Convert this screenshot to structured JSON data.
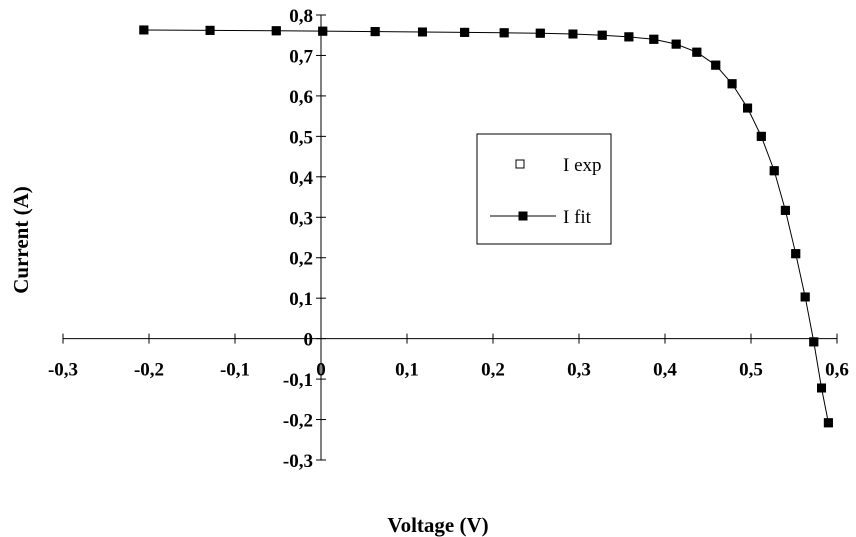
{
  "chart_data": {
    "type": "scatter",
    "xlabel": "Voltage (V)",
    "ylabel": "Current (A)",
    "xlim": [
      -0.3,
      0.6
    ],
    "ylim": [
      -0.3,
      0.8
    ],
    "x_ticks": [
      "-0,3",
      "-0,2",
      "-0,1",
      "0",
      "0,1",
      "0,2",
      "0,3",
      "0,4",
      "0,5",
      "0,6"
    ],
    "y_ticks": [
      "-0,3",
      "-0,2",
      "-0,1",
      "0",
      "0,1",
      "0,2",
      "0,3",
      "0,4",
      "0,5",
      "0,6",
      "0,7",
      "0,8"
    ],
    "grid": false,
    "legend_position": "center-right",
    "series": [
      {
        "name": "I exp",
        "marker": "open-square",
        "line": false,
        "color": "#000000",
        "x": [
          -0.206,
          -0.129,
          -0.052,
          0.002,
          0.063,
          0.118,
          0.167,
          0.213,
          0.255,
          0.293,
          0.327,
          0.358,
          0.387,
          0.413,
          0.437,
          0.459,
          0.478,
          0.496,
          0.512,
          0.527,
          0.54,
          0.552,
          0.563,
          0.573,
          0.582,
          0.59
        ],
        "y": [
          0.763,
          0.762,
          0.761,
          0.76,
          0.759,
          0.758,
          0.757,
          0.756,
          0.755,
          0.753,
          0.75,
          0.746,
          0.74,
          0.728,
          0.708,
          0.676,
          0.63,
          0.57,
          0.5,
          0.415,
          0.317,
          0.21,
          0.103,
          -0.008,
          -0.122,
          -0.208
        ]
      },
      {
        "name": "I fit",
        "marker": "filled-square",
        "line": true,
        "color": "#000000",
        "x": [
          -0.206,
          -0.129,
          -0.052,
          0.002,
          0.063,
          0.118,
          0.167,
          0.213,
          0.255,
          0.293,
          0.327,
          0.358,
          0.387,
          0.413,
          0.437,
          0.459,
          0.478,
          0.496,
          0.512,
          0.527,
          0.54,
          0.552,
          0.563,
          0.573,
          0.582,
          0.59
        ],
        "y": [
          0.763,
          0.762,
          0.761,
          0.76,
          0.759,
          0.758,
          0.757,
          0.756,
          0.755,
          0.753,
          0.75,
          0.746,
          0.74,
          0.728,
          0.708,
          0.676,
          0.63,
          0.57,
          0.5,
          0.415,
          0.317,
          0.21,
          0.103,
          -0.008,
          -0.122,
          -0.208
        ]
      }
    ]
  }
}
